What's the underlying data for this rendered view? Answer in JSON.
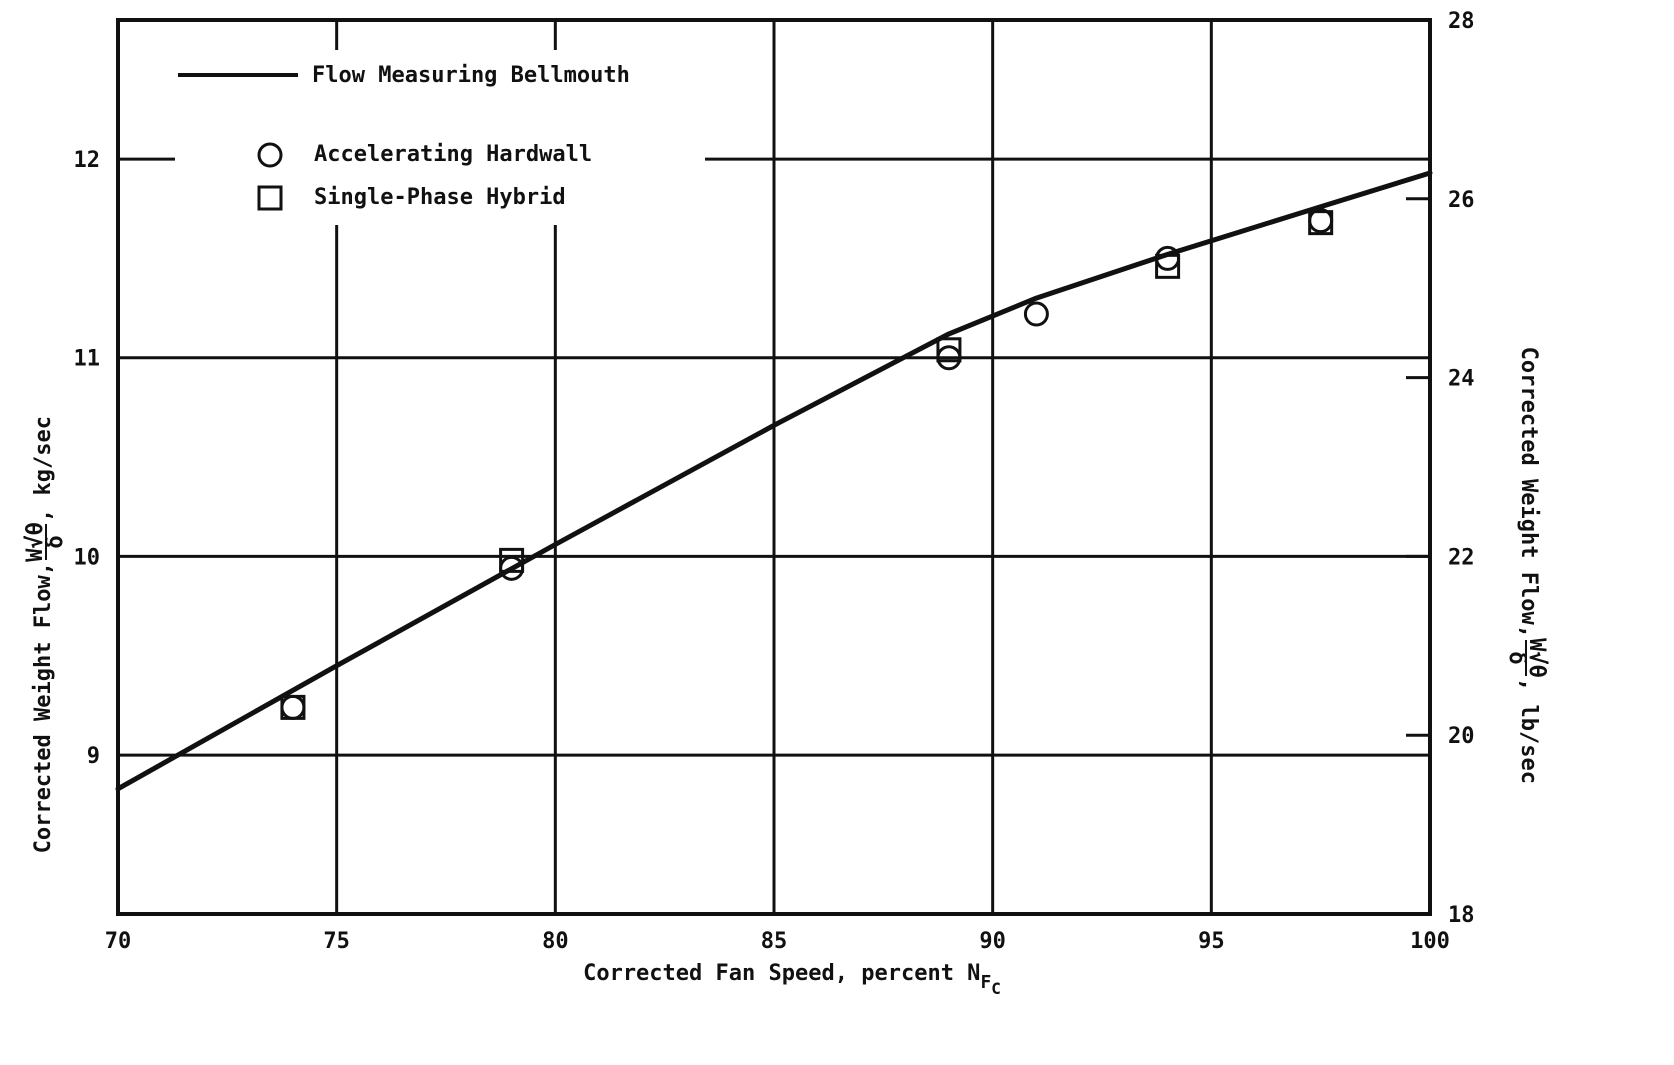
{
  "chart_data": {
    "type": "line",
    "title": "",
    "xlabel": {
      "main": "Corrected Fan Speed, percent N",
      "sub1": "F",
      "sub2": "C"
    },
    "ylabel_left": {
      "prefix": "Corrected Weight Flow, ",
      "fraction_num": "W√θ",
      "fraction_den": "δ",
      "suffix": ", kg/sec"
    },
    "ylabel_right": {
      "prefix": "Corrected Weight Flow, ",
      "fraction_num": "W√θ",
      "fraction_den": "δ",
      "suffix": ", lb/sec"
    },
    "xlim": [
      70,
      100
    ],
    "ylim_left": [
      8.2,
      12.7
    ],
    "ylim_right": [
      18,
      28
    ],
    "x_ticks": [
      {
        "value": 70,
        "label": "70"
      },
      {
        "value": 75,
        "label": "75"
      },
      {
        "value": 80,
        "label": "80"
      },
      {
        "value": 85,
        "label": "85"
      },
      {
        "value": 90,
        "label": "90"
      },
      {
        "value": 95,
        "label": "95"
      },
      {
        "value": 100,
        "label": "100"
      }
    ],
    "y_ticks_left": [
      {
        "value": 9,
        "label": "9"
      },
      {
        "value": 10,
        "label": "10"
      },
      {
        "value": 11,
        "label": "11"
      },
      {
        "value": 12,
        "label": "12"
      }
    ],
    "y_ticks_right": [
      {
        "value": 18,
        "label": "18"
      },
      {
        "value": 20,
        "label": "20"
      },
      {
        "value": 22,
        "label": "22"
      },
      {
        "value": 24,
        "label": "24"
      },
      {
        "value": 26,
        "label": "26"
      },
      {
        "value": 28,
        "label": "28"
      }
    ],
    "grid": true,
    "legend_position": "top-left",
    "series": [
      {
        "name": "Flow Measuring Bellmouth",
        "style": "line",
        "color": "#111111",
        "x": [
          70,
          75,
          80,
          85,
          89,
          91,
          94,
          97.5,
          100
        ],
        "y": [
          8.83,
          9.45,
          10.06,
          10.66,
          11.12,
          11.3,
          11.52,
          11.76,
          11.93
        ]
      },
      {
        "name": "Accelerating Hardwall",
        "style": "circle",
        "color": "#111111",
        "x": [
          74,
          79,
          89,
          91,
          94,
          97.5
        ],
        "y": [
          9.24,
          9.94,
          11.0,
          11.22,
          11.5,
          11.69
        ]
      },
      {
        "name": "Single-Phase Hybrid",
        "style": "square",
        "color": "#111111",
        "x": [
          74,
          79,
          89,
          94,
          97.5
        ],
        "y": [
          9.24,
          9.98,
          11.04,
          11.46,
          11.68
        ]
      }
    ]
  }
}
